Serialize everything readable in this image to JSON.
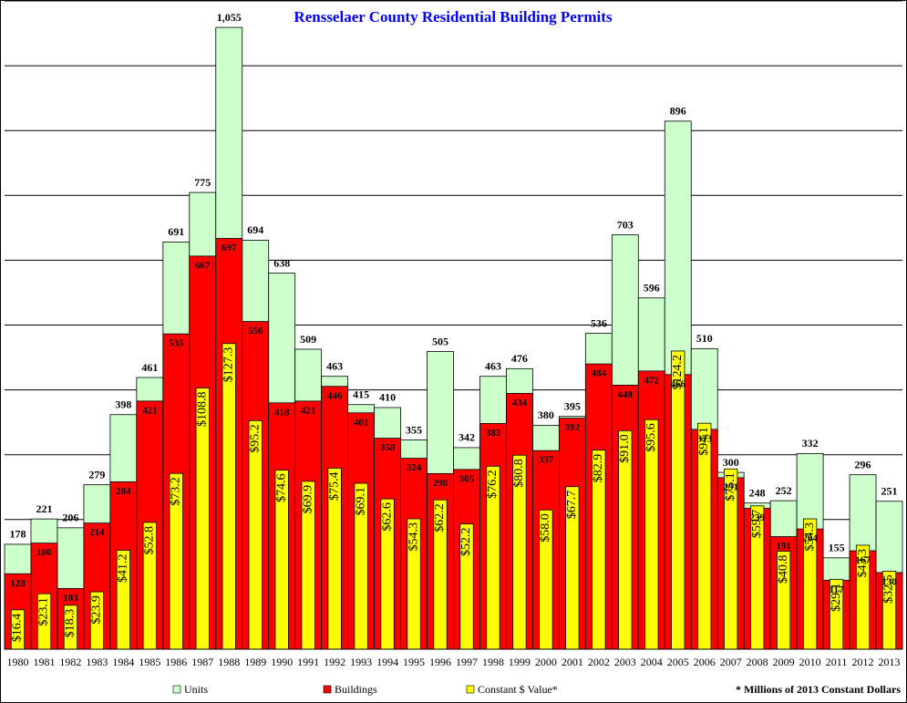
{
  "chart_data": {
    "type": "bar",
    "title": "Rensselaer County Residential Building Permits",
    "note": "* Millions of 2013 Constant  Dollars",
    "categories": [
      "1980",
      "1981",
      "1982",
      "1983",
      "1984",
      "1985",
      "1986",
      "1987",
      "1988",
      "1989",
      "1990",
      "1991",
      "1992",
      "1993",
      "1994",
      "1995",
      "1996",
      "1997",
      "1998",
      "1999",
      "2000",
      "2001",
      "2002",
      "2003",
      "2004",
      "2005",
      "2006",
      "2007",
      "2008",
      "2009",
      "2010",
      "2011",
      "2012",
      "2013"
    ],
    "ylim": [
      0,
      1100
    ],
    "yticks": [
      0,
      110,
      220,
      330,
      440,
      550,
      660,
      770,
      880,
      990,
      1100
    ],
    "grid": true,
    "y2lim": [
      0,
      270
    ],
    "series": [
      {
        "name": "Units",
        "color": "#ccffcc",
        "values": [
          178,
          221,
          206,
          279,
          398,
          461,
          691,
          775,
          1055,
          694,
          638,
          509,
          463,
          415,
          410,
          355,
          505,
          342,
          463,
          476,
          380,
          395,
          536,
          703,
          596,
          896,
          510,
          300,
          248,
          252,
          332,
          155,
          296,
          251
        ],
        "value_labels": [
          "178",
          "221",
          "206",
          "279",
          "398",
          "461",
          "691",
          "775",
          "1,055",
          "694",
          "638",
          "509",
          "463",
          "415",
          "410",
          "355",
          "505",
          "342",
          "463",
          "476",
          "380",
          "395",
          "536",
          "703",
          "596",
          "896",
          "510",
          "300",
          "248",
          "252",
          "332",
          "155",
          "296",
          "251"
        ]
      },
      {
        "name": "Buildings",
        "color": "#ff0000",
        "values": [
          128,
          180,
          103,
          214,
          284,
          421,
          535,
          667,
          697,
          556,
          418,
          421,
          446,
          401,
          358,
          324,
          298,
          305,
          383,
          434,
          337,
          392,
          484,
          448,
          472,
          466,
          373,
          291,
          239,
          191,
          204,
          117,
          167,
          130
        ]
      },
      {
        "name": "Constant $ Value*",
        "color": "#ffff00",
        "axis": "y2",
        "values": [
          16.4,
          23.1,
          18.3,
          23.9,
          41.2,
          52.8,
          73.2,
          108.8,
          127.3,
          95.2,
          74.6,
          69.9,
          75.4,
          69.1,
          62.6,
          54.3,
          62.2,
          52.2,
          76.2,
          80.8,
          58.0,
          67.7,
          82.9,
          91.0,
          95.6,
          124.2,
          94.1,
          75.1,
          59.7,
          40.8,
          54.3,
          29.1,
          43.3,
          32.5
        ],
        "value_labels": [
          "$16.4",
          "$23.1",
          "$18.3",
          "$23.9",
          "$41.2",
          "$52.8",
          "$73.2",
          "$108.8",
          "$127.3",
          "$95.2",
          "$74.6",
          "$69.9",
          "$75.4",
          "$69.1",
          "$62.6",
          "$54.3",
          "$62.2",
          "$52.2",
          "$76.2",
          "$80.8",
          "$58.0",
          "$67.7",
          "$82.9",
          "$91.0",
          "$95.6",
          "$124.2",
          "$94.1",
          "$75.1",
          "$59.7",
          "$40.8",
          "$54.3",
          "$29.1",
          "$43.3",
          "$32.5"
        ]
      }
    ]
  }
}
